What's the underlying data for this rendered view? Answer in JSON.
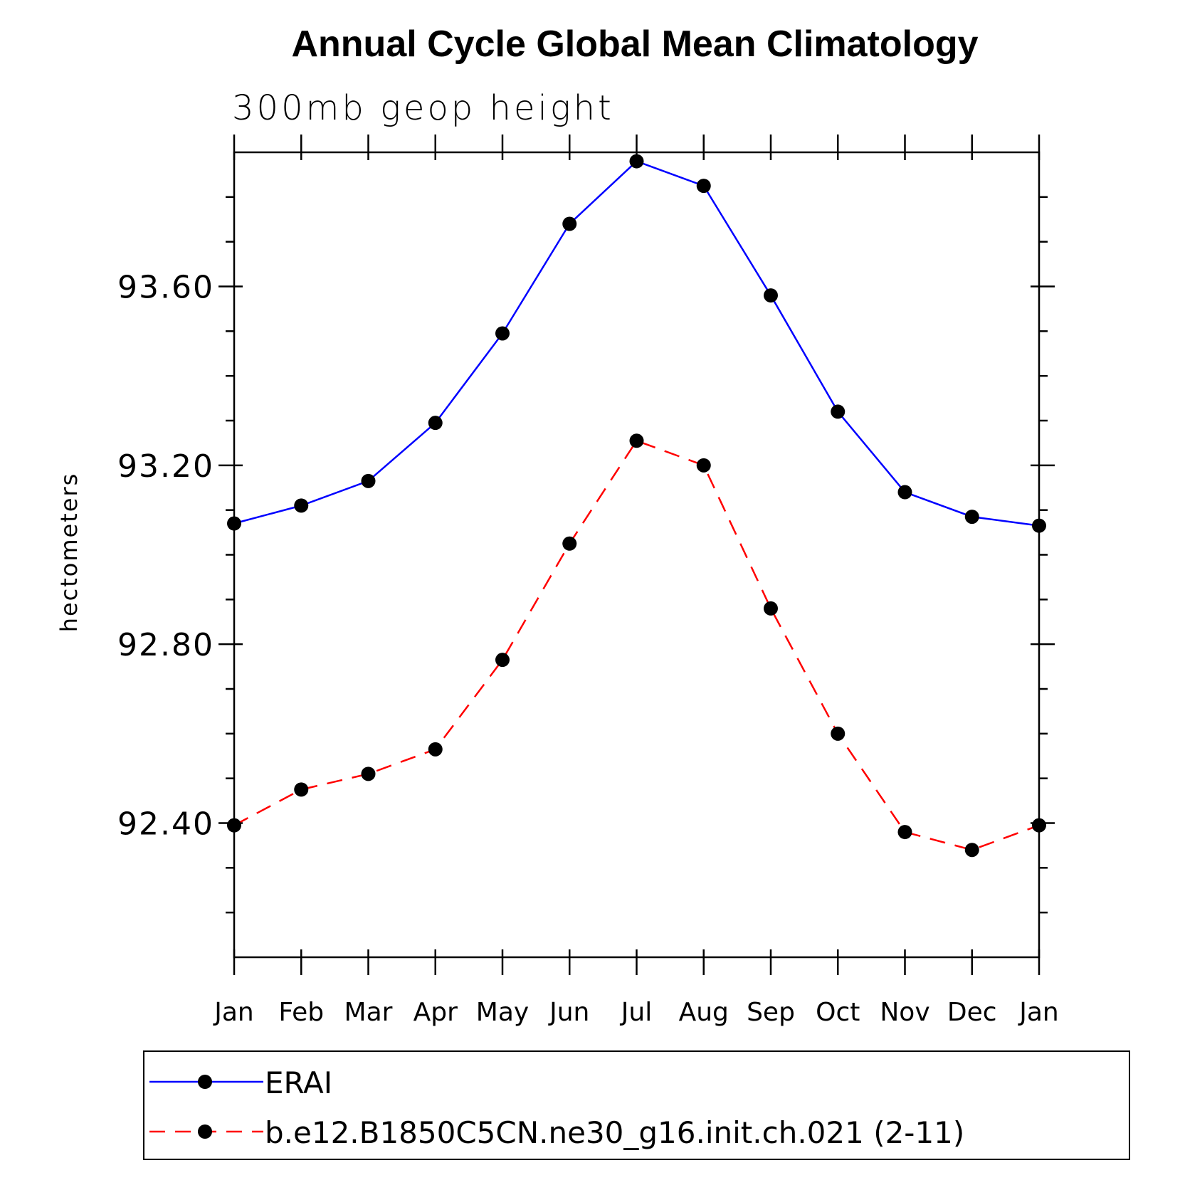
{
  "chart_data": {
    "type": "line",
    "title": "Annual Cycle Global Mean Climatology",
    "subtitle": "300mb  geop  height",
    "xlabel": "",
    "ylabel": "hectometers",
    "categories": [
      "Jan",
      "Feb",
      "Mar",
      "Apr",
      "May",
      "Jun",
      "Jul",
      "Aug",
      "Sep",
      "Oct",
      "Nov",
      "Dec",
      "Jan"
    ],
    "ylim": [
      92.1,
      93.9
    ],
    "yticks_major": [
      92.4,
      92.8,
      93.2,
      93.6
    ],
    "ytick_labels": [
      "92.40",
      "92.80",
      "93.20",
      "93.60"
    ],
    "ytick_minor_step": 0.1,
    "grid": false,
    "legend_position": "bottom",
    "series": [
      {
        "name": "ERAI",
        "color": "#0000ff",
        "dash": "solid",
        "marker": "filled-circle",
        "values": [
          93.07,
          93.11,
          93.165,
          93.295,
          93.495,
          93.74,
          93.88,
          93.825,
          93.58,
          93.32,
          93.14,
          93.085,
          93.065
        ]
      },
      {
        "name": "b.e12.B1850C5CN.ne30_g16.init.ch.021 (2-11)",
        "color": "#ff0000",
        "dash": "dashed",
        "marker": "filled-circle",
        "values": [
          92.395,
          92.475,
          92.51,
          92.565,
          92.765,
          93.025,
          93.255,
          93.2,
          92.88,
          92.6,
          92.38,
          92.34,
          92.395
        ]
      }
    ]
  }
}
